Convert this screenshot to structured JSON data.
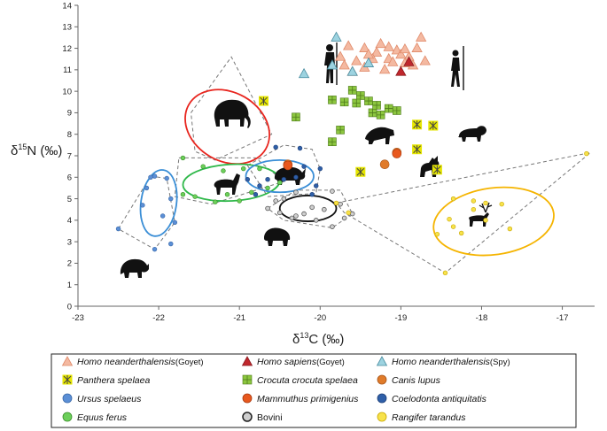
{
  "chart_data": {
    "type": "scatter",
    "xlabel": "δ13C (‰)",
    "ylabel": "δ15N (‰)",
    "xlim": [
      -23,
      -16.6
    ],
    "ylim": [
      0,
      14
    ],
    "xticks": [
      -23,
      -22,
      -21,
      -20,
      -19,
      -18,
      -17
    ],
    "yticks": [
      0,
      1,
      2,
      3,
      4,
      5,
      6,
      7,
      8,
      9,
      10,
      11,
      12,
      13,
      14
    ],
    "legend_position": "bottom",
    "series": [
      {
        "name": "Homo neanderthalensis",
        "suffix": "(Goyet)",
        "italic": true,
        "marker": "triangle",
        "color": "#f4b9a1",
        "stroke": "#e08a6a",
        "points": [
          [
            -19.7,
            11.2
          ],
          [
            -19.55,
            11.4
          ],
          [
            -19.45,
            11.1
          ],
          [
            -19.3,
            11.8
          ],
          [
            -19.15,
            11.5
          ],
          [
            -19.05,
            11.9
          ],
          [
            -18.9,
            11.6
          ],
          [
            -18.95,
            11.3
          ],
          [
            -19.2,
            11.0
          ],
          [
            -19.35,
            11.5
          ],
          [
            -19.1,
            11.35
          ],
          [
            -19.0,
            11.7
          ],
          [
            -18.8,
            12.0
          ],
          [
            -18.75,
            12.5
          ],
          [
            -18.85,
            11.2
          ],
          [
            -19.65,
            12.1
          ],
          [
            -19.45,
            12.0
          ],
          [
            -19.25,
            12.2
          ],
          [
            -19.75,
            11.6
          ],
          [
            -18.7,
            11.4
          ],
          [
            -19.6,
            10.9
          ],
          [
            -19.4,
            11.7
          ],
          [
            -19.15,
            12.05
          ],
          [
            -18.95,
            11.95
          ]
        ]
      },
      {
        "name": "Homo sapiens",
        "suffix": "(Goyet)",
        "italic": true,
        "marker": "triangle",
        "color": "#c0272d",
        "stroke": "#8a1a1f",
        "points": [
          [
            -18.9,
            11.35
          ],
          [
            -19.0,
            10.9
          ]
        ]
      },
      {
        "name": "Homo neanderthalensis",
        "suffix": "(Spy)",
        "italic": true,
        "marker": "triangle",
        "color": "#9dd3e0",
        "stroke": "#4a8da0",
        "points": [
          [
            -19.8,
            12.5
          ],
          [
            -20.2,
            10.8
          ],
          [
            -19.6,
            10.9
          ],
          [
            -19.4,
            11.3
          ],
          [
            -19.85,
            11.2
          ]
        ]
      },
      {
        "name": "Panthera spelaea",
        "suffix": "",
        "italic": true,
        "marker": "panthera",
        "color": "#e6e600",
        "stroke": "#8a8a00",
        "points": [
          [
            -20.7,
            9.55
          ],
          [
            -18.8,
            8.45
          ],
          [
            -18.6,
            8.4
          ],
          [
            -18.8,
            7.3
          ],
          [
            -19.5,
            6.25
          ],
          [
            -18.55,
            6.35
          ]
        ]
      },
      {
        "name": "Crocuta crocuta spelaea",
        "suffix": "",
        "italic": true,
        "marker": "square-plus",
        "color": "#8cc63f",
        "stroke": "#4e7a1c",
        "points": [
          [
            -20.3,
            8.8
          ],
          [
            -19.85,
            9.6
          ],
          [
            -19.7,
            9.5
          ],
          [
            -19.6,
            10.05
          ],
          [
            -19.5,
            9.8
          ],
          [
            -19.35,
            9.0
          ],
          [
            -19.3,
            9.35
          ],
          [
            -19.15,
            9.2
          ],
          [
            -19.05,
            9.1
          ],
          [
            -19.55,
            9.45
          ],
          [
            -19.4,
            9.55
          ],
          [
            -19.75,
            8.2
          ],
          [
            -19.85,
            7.65
          ],
          [
            -19.25,
            8.9
          ]
        ]
      },
      {
        "name": "Canis lupus",
        "suffix": "",
        "italic": true,
        "marker": "circle",
        "color": "#e07b2a",
        "stroke": "#a8561a",
        "points": [
          [
            -20.4,
            6.6
          ],
          [
            -19.05,
            7.15
          ],
          [
            -19.2,
            6.6
          ]
        ]
      },
      {
        "name": "Ursus spelaeus",
        "suffix": "",
        "italic": true,
        "marker": "circle",
        "color": "#5b8fd6",
        "stroke": "#3a69a8",
        "points": [
          [
            -22.5,
            3.6
          ],
          [
            -22.1,
            6.0
          ],
          [
            -21.9,
            5.95
          ],
          [
            -22.05,
            6.05
          ],
          [
            -21.85,
            5.0
          ],
          [
            -21.8,
            3.9
          ],
          [
            -21.85,
            2.9
          ],
          [
            -22.05,
            2.65
          ],
          [
            -22.15,
            5.5
          ],
          [
            -22.2,
            4.7
          ],
          [
            -21.95,
            4.2
          ]
        ]
      },
      {
        "name": "Mammuthus primigenius",
        "suffix": "",
        "italic": true,
        "marker": "circle",
        "color": "#e8581e",
        "stroke": "#a83a10",
        "points": [
          [
            -20.4,
            6.55
          ],
          [
            -19.05,
            7.1
          ]
        ]
      },
      {
        "name": "Coelodonta antiquitatis",
        "suffix": "",
        "italic": true,
        "marker": "circle",
        "color": "#2f5fa8",
        "stroke": "#1d3f78",
        "points": [
          [
            -20.55,
            7.4
          ],
          [
            -20.25,
            7.35
          ],
          [
            -20.2,
            6.5
          ],
          [
            -20.05,
            5.6
          ],
          [
            -20.1,
            5.2
          ],
          [
            -20.45,
            5.9
          ],
          [
            -20.65,
            5.9
          ],
          [
            -20.9,
            5.9
          ],
          [
            -20.75,
            5.6
          ],
          [
            -20.8,
            5.2
          ],
          [
            -20.3,
            6.0
          ],
          [
            -20.0,
            6.4
          ]
        ]
      },
      {
        "name": "Equus ferus",
        "suffix": "",
        "italic": true,
        "marker": "circle",
        "color": "#6ccf5a",
        "stroke": "#3a8f2a",
        "points": [
          [
            -21.7,
            6.9
          ],
          [
            -21.45,
            6.5
          ],
          [
            -21.2,
            6.3
          ],
          [
            -20.95,
            6.4
          ],
          [
            -20.75,
            6.4
          ],
          [
            -21.7,
            5.2
          ],
          [
            -21.55,
            5.1
          ],
          [
            -21.15,
            5.2
          ],
          [
            -20.85,
            5.3
          ],
          [
            -20.65,
            5.5
          ],
          [
            -20.5,
            5.75
          ],
          [
            -21.3,
            4.85
          ],
          [
            -21.0,
            4.9
          ]
        ]
      },
      {
        "name": "Bovini",
        "suffix": "",
        "italic": false,
        "marker": "circle-bovini",
        "color": "#cfcfcf",
        "stroke": "#555555",
        "points": [
          [
            -20.65,
            4.55
          ],
          [
            -20.5,
            4.35
          ],
          [
            -20.35,
            4.1
          ],
          [
            -20.2,
            4.3
          ],
          [
            -20.05,
            4.0
          ],
          [
            -20.1,
            4.6
          ],
          [
            -19.95,
            4.5
          ],
          [
            -19.85,
            3.7
          ],
          [
            -19.85,
            5.35
          ],
          [
            -19.75,
            4.75
          ],
          [
            -19.7,
            4.1
          ],
          [
            -20.3,
            5.3
          ],
          [
            -20.45,
            5.0
          ],
          [
            -20.3,
            4.2
          ],
          [
            -19.6,
            4.3
          ],
          [
            -20.55,
            4.9
          ]
        ]
      },
      {
        "name": "Rangifer tarandus",
        "suffix": "",
        "italic": true,
        "marker": "circle",
        "color": "#f7e24b",
        "stroke": "#c9a800",
        "points": [
          [
            -19.8,
            4.8
          ],
          [
            -19.65,
            4.35
          ],
          [
            -18.45,
            1.55
          ],
          [
            -16.7,
            7.1
          ],
          [
            -17.75,
            4.75
          ],
          [
            -17.95,
            4.0
          ],
          [
            -18.1,
            4.5
          ],
          [
            -18.25,
            3.4
          ],
          [
            -18.35,
            3.7
          ],
          [
            -18.4,
            4.05
          ],
          [
            -18.35,
            5.0
          ],
          [
            -18.1,
            4.9
          ],
          [
            -17.95,
            4.8
          ],
          [
            -17.65,
            3.6
          ],
          [
            -18.55,
            3.35
          ]
        ]
      }
    ],
    "ellipses": [
      {
        "group": "Mammuthus primigenius",
        "color": "#e8251e",
        "cx": -21.15,
        "cy": 8.35,
        "rx": 0.55,
        "ry": 1.6,
        "rotate": 30
      },
      {
        "group": "Ursus spelaeus",
        "color": "#3a8ed6",
        "cx": -22.0,
        "cy": 4.8,
        "rx": 0.22,
        "ry": 1.55,
        "rotate": 8
      },
      {
        "group": "Equus ferus",
        "color": "#2fb84a",
        "cx": -21.1,
        "cy": 5.75,
        "rx": 0.6,
        "ry": 0.85,
        "rotate": -3
      },
      {
        "group": "Coelodonta antiquitatis",
        "color": "#3a8ed6",
        "cx": -20.5,
        "cy": 6.05,
        "rx": 0.42,
        "ry": 0.75,
        "rotate": 0
      },
      {
        "group": "Bovini",
        "color": "#111111",
        "cx": -20.15,
        "cy": 4.55,
        "rx": 0.35,
        "ry": 0.6,
        "rotate": 0
      },
      {
        "group": "Rangifer tarandus",
        "color": "#f5b400",
        "cx": -17.85,
        "cy": 3.95,
        "rx": 0.75,
        "ry": 1.55,
        "rotate": -8
      }
    ],
    "hulls": [
      {
        "group": "Mammuthus primigenius",
        "points": [
          [
            -21.6,
            9.0
          ],
          [
            -21.1,
            11.6
          ],
          [
            -20.6,
            8.0
          ],
          [
            -21.3,
            6.8
          ],
          [
            -21.55,
            7.2
          ]
        ]
      },
      {
        "group": "Ursus spelaeus",
        "points": [
          [
            -22.5,
            3.6
          ],
          [
            -22.1,
            6.05
          ],
          [
            -21.9,
            5.95
          ],
          [
            -21.8,
            3.9
          ],
          [
            -22.05,
            2.65
          ]
        ]
      },
      {
        "group": "Equus ferus",
        "points": [
          [
            -21.75,
            6.9
          ],
          [
            -20.8,
            6.9
          ],
          [
            -20.45,
            5.8
          ],
          [
            -21.35,
            4.75
          ],
          [
            -21.8,
            5.1
          ]
        ]
      },
      {
        "group": "Coelodonta antiquitatis",
        "points": [
          [
            -20.9,
            6.55
          ],
          [
            -20.45,
            7.5
          ],
          [
            -20.1,
            7.3
          ],
          [
            -20.0,
            6.4
          ],
          [
            -20.05,
            5.25
          ],
          [
            -20.65,
            5.1
          ]
        ]
      },
      {
        "group": "Bovini",
        "points": [
          [
            -20.65,
            4.55
          ],
          [
            -20.3,
            5.4
          ],
          [
            -19.75,
            5.4
          ],
          [
            -19.6,
            4.3
          ],
          [
            -19.85,
            3.65
          ],
          [
            -20.45,
            4.0
          ]
        ]
      },
      {
        "group": "Rangifer tarandus",
        "points": [
          [
            -19.8,
            4.8
          ],
          [
            -16.65,
            7.15
          ],
          [
            -18.45,
            1.55
          ],
          [
            -19.7,
            4.35
          ]
        ]
      }
    ],
    "silhouettes": [
      "mammoth",
      "bear",
      "horse",
      "rhino",
      "bison",
      "reindeer",
      "hyena",
      "lion",
      "wolf",
      "neanderthal-figure",
      "sapiens-figure"
    ],
    "legend": [
      {
        "label": "Homo neanderthalensis",
        "suffix": "(Goyet)"
      },
      {
        "label": "Homo sapiens",
        "suffix": "(Goyet)"
      },
      {
        "label": "Homo neanderthalensis",
        "suffix": "(Spy)"
      },
      {
        "label": "Panthera spelaea",
        "suffix": ""
      },
      {
        "label": "Crocuta crocuta spelaea",
        "suffix": ""
      },
      {
        "label": "Canis lupus",
        "suffix": ""
      },
      {
        "label": "Ursus spelaeus",
        "suffix": ""
      },
      {
        "label": "Mammuthus primigenius",
        "suffix": ""
      },
      {
        "label": "Coelodonta antiquitatis",
        "suffix": ""
      },
      {
        "label": "Equus ferus",
        "suffix": ""
      },
      {
        "label": "Bovini",
        "suffix": ""
      },
      {
        "label": "Rangifer tarandus",
        "suffix": ""
      }
    ]
  }
}
